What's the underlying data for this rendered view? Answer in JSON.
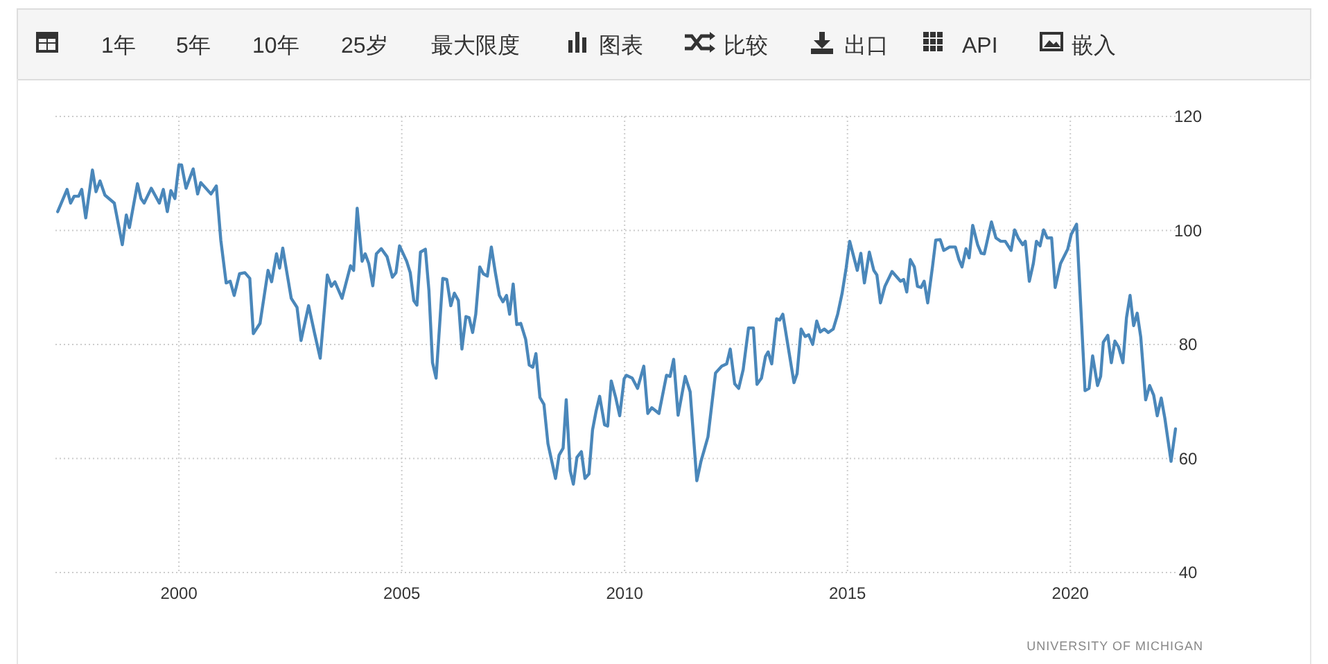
{
  "chart_data": {
    "type": "line",
    "xlim": [
      1997.23,
      2022.36
    ],
    "ylim": [
      40,
      120
    ],
    "xticks": [
      2000,
      2005,
      2010,
      2015,
      2020
    ],
    "yticks": [
      40,
      60,
      80,
      100,
      120
    ],
    "grid": true,
    "annotations": [
      "1年",
      "5年",
      "10年",
      "25岁",
      "最大限度",
      "图表",
      "比较",
      "出口",
      "API",
      "嵌入",
      "UNIVERSITY OF MICHIGAN"
    ],
    "series": [
      {
        "color": "#4a87ba",
        "x": [
          1997.28,
          1997.49,
          1997.57,
          1997.65,
          1997.75,
          1997.82,
          1997.91,
          1998.06,
          1998.14,
          1998.23,
          1998.34,
          1998.55,
          1998.73,
          1998.82,
          1998.89,
          1999.07,
          1999.15,
          1999.22,
          1999.38,
          1999.56,
          1999.65,
          1999.74,
          1999.82,
          1999.91,
          2000.0,
          2000.06,
          2000.16,
          2000.32,
          2000.42,
          2000.49,
          2000.72,
          2000.84,
          2000.94,
          2001.06,
          2001.15,
          2001.24,
          2001.36,
          2001.48,
          2001.59,
          2001.67,
          2001.82,
          2002.0,
          2002.08,
          2002.19,
          2002.26,
          2002.33,
          2002.52,
          2002.65,
          2002.74,
          2002.91,
          2003.04,
          2003.17,
          2003.33,
          2003.42,
          2003.5,
          2003.66,
          2003.85,
          2003.92,
          2004.0,
          2004.11,
          2004.18,
          2004.26,
          2004.35,
          2004.43,
          2004.54,
          2004.67,
          2004.79,
          2004.87,
          2004.95,
          2005.11,
          2005.19,
          2005.27,
          2005.34,
          2005.42,
          2005.53,
          2005.61,
          2005.69,
          2005.77,
          2005.92,
          2006.01,
          2006.1,
          2006.18,
          2006.27,
          2006.35,
          2006.44,
          2006.51,
          2006.59,
          2006.66,
          2006.75,
          2006.83,
          2006.92,
          2007.01,
          2007.1,
          2007.19,
          2007.27,
          2007.35,
          2007.42,
          2007.5,
          2007.58,
          2007.67,
          2007.78,
          2007.86,
          2007.94,
          2008.01,
          2008.1,
          2008.19,
          2008.28,
          2008.45,
          2008.53,
          2008.62,
          2008.69,
          2008.78,
          2008.85,
          2008.93,
          2009.03,
          2009.11,
          2009.2,
          2009.28,
          2009.36,
          2009.44,
          2009.55,
          2009.62,
          2009.7,
          2009.8,
          2009.89,
          2009.99,
          2010.04,
          2010.17,
          2010.29,
          2010.43,
          2010.52,
          2010.61,
          2010.77,
          2010.94,
          2011.02,
          2011.1,
          2011.2,
          2011.36,
          2011.47,
          2011.62,
          2011.71,
          2011.87,
          2012.04,
          2012.18,
          2012.29,
          2012.37,
          2012.47,
          2012.56,
          2012.66,
          2012.78,
          2012.89,
          2012.97,
          2013.07,
          2013.16,
          2013.22,
          2013.3,
          2013.41,
          2013.48,
          2013.55,
          2013.8,
          2013.87,
          2013.96,
          2014.05,
          2014.13,
          2014.22,
          2014.31,
          2014.39,
          2014.48,
          2014.57,
          2014.68,
          2014.78,
          2014.88,
          2014.97,
          2015.05,
          2015.14,
          2015.22,
          2015.3,
          2015.38,
          2015.49,
          2015.59,
          2015.66,
          2015.74,
          2015.84,
          2016.0,
          2016.19,
          2016.26,
          2016.33,
          2016.41,
          2016.5,
          2016.57,
          2016.65,
          2016.72,
          2016.8,
          2016.91,
          2016.98,
          2017.08,
          2017.16,
          2017.29,
          2017.42,
          2017.5,
          2017.57,
          2017.66,
          2017.73,
          2017.81,
          2017.92,
          2018.0,
          2018.07,
          2018.23,
          2018.33,
          2018.44,
          2018.54,
          2018.67,
          2018.75,
          2018.83,
          2018.93,
          2018.99,
          2019.08,
          2019.17,
          2019.24,
          2019.32,
          2019.4,
          2019.48,
          2019.58,
          2019.66,
          2019.78,
          2019.94,
          2020.02,
          2020.14,
          2020.33,
          2020.42,
          2020.5,
          2020.61,
          2020.68,
          2020.74,
          2020.84,
          2020.92,
          2021.0,
          2021.08,
          2021.18,
          2021.26,
          2021.34,
          2021.42,
          2021.5,
          2021.58,
          2021.69,
          2021.78,
          2021.87,
          2021.95,
          2022.04,
          2022.12,
          2022.26,
          2022.36
        ],
        "values": [
          103.3,
          107.2,
          104.8,
          106,
          106,
          107.2,
          102.2,
          110.6,
          106.8,
          108.7,
          106.2,
          104.8,
          97.5,
          102.7,
          100.5,
          108.2,
          105.6,
          104.8,
          107.4,
          104.8,
          107.2,
          103.3,
          107,
          105.6,
          111.5,
          111.5,
          107.4,
          110.8,
          106.4,
          108.4,
          106.4,
          107.8,
          98.3,
          90.8,
          91.1,
          88.6,
          92.4,
          92.6,
          91.6,
          81.9,
          83.7,
          93,
          91,
          95.9,
          93.4,
          96.9,
          88.1,
          86.5,
          80.7,
          86.8,
          82.1,
          77.6,
          92.2,
          90.2,
          91,
          88.1,
          93.8,
          93,
          103.9,
          94.6,
          95.9,
          94.2,
          90.3,
          95.9,
          96.8,
          95.4,
          91.8,
          92.6,
          97.3,
          94.6,
          92.6,
          87.7,
          86.9,
          96.2,
          96.7,
          89.4,
          76.8,
          74.1,
          91.6,
          91.4,
          86.8,
          89,
          87.7,
          79.2,
          84.9,
          84.7,
          82.1,
          85.3,
          93.6,
          92.4,
          92,
          97.1,
          92.6,
          88.6,
          87.5,
          88.6,
          85.3,
          90.6,
          83.5,
          83.7,
          80.9,
          76.4,
          76,
          78.4,
          70.7,
          69.5,
          62.6,
          56.5,
          60.6,
          61.8,
          70.3,
          57.8,
          55.5,
          60.2,
          61.2,
          56.5,
          57.3,
          65,
          68.3,
          70.9,
          65.9,
          65.7,
          73.6,
          70.7,
          67.5,
          74,
          74.6,
          74.1,
          72.3,
          76.2,
          67.9,
          68.9,
          67.9,
          74.6,
          74.4,
          77.4,
          67.6,
          74.4,
          71.7,
          56.1,
          59.4,
          63.8,
          75,
          76.2,
          76.6,
          79.2,
          73.1,
          72.3,
          75.6,
          82.9,
          82.9,
          73,
          74.1,
          77.9,
          78.7,
          76.6,
          84.5,
          84.3,
          85.3,
          73.3,
          74.9,
          82.7,
          81.4,
          81.7,
          80,
          84.1,
          82.2,
          82.7,
          82.1,
          82.7,
          85.3,
          89,
          93.4,
          98.1,
          95.4,
          93,
          96,
          90.8,
          96.2,
          93,
          92.2,
          87.3,
          90.2,
          92.8,
          91.1,
          91.4,
          89.2,
          94.9,
          93.6,
          90.2,
          90,
          91.1,
          87.3,
          93.8,
          98.3,
          98.4,
          96.5,
          97.1,
          97.1,
          94.9,
          93.6,
          96.8,
          95.2,
          100.9,
          97.5,
          96,
          95.9,
          101.5,
          98.7,
          98.1,
          98.1,
          96.5,
          100.1,
          98.7,
          97.5,
          98.1,
          91.1,
          94.2,
          98.1,
          97.3,
          100.1,
          98.7,
          98.7,
          90,
          94.2,
          96.7,
          99.3,
          101.1,
          71.9,
          72.3,
          78,
          72.8,
          74.4,
          80.4,
          81.6,
          76.8,
          80.6,
          79.6,
          76.8,
          84.7,
          88.6,
          83.3,
          85.5,
          81.3,
          70.3,
          72.8,
          71.1,
          67.5,
          70.6,
          67.1,
          59.5,
          65.2
        ]
      }
    ]
  }
}
